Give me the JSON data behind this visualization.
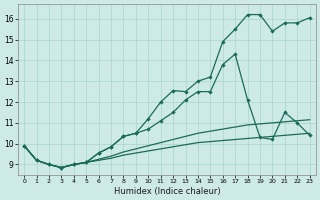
{
  "xlabel": "Humidex (Indice chaleur)",
  "x_ticks": [
    0,
    1,
    2,
    3,
    4,
    5,
    6,
    7,
    8,
    9,
    10,
    11,
    12,
    13,
    14,
    15,
    16,
    17,
    18,
    19,
    20,
    21,
    22,
    23
  ],
  "xlim": [
    -0.5,
    23.5
  ],
  "ylim": [
    8.5,
    16.7
  ],
  "y_ticks": [
    9,
    10,
    11,
    12,
    13,
    14,
    15,
    16
  ],
  "bg_color": "#ceeae6",
  "grid_color": "#a8d4cf",
  "line_color": "#1a6b5a",
  "line1_x": [
    0,
    1,
    2,
    3,
    4,
    5,
    6,
    7,
    8,
    9,
    10,
    11,
    12,
    13,
    14,
    15,
    16,
    17,
    18,
    19,
    20,
    21,
    22,
    23
  ],
  "line1_y": [
    9.9,
    9.2,
    9.0,
    8.85,
    9.0,
    9.1,
    9.2,
    9.3,
    9.45,
    9.55,
    9.65,
    9.75,
    9.85,
    9.95,
    10.05,
    10.1,
    10.15,
    10.2,
    10.25,
    10.3,
    10.35,
    10.4,
    10.45,
    10.5
  ],
  "line2_x": [
    0,
    1,
    2,
    3,
    4,
    5,
    6,
    7,
    8,
    9,
    10,
    11,
    12,
    13,
    14,
    15,
    16,
    17,
    18,
    19,
    20,
    21,
    22,
    23
  ],
  "line2_y": [
    9.9,
    9.2,
    9.0,
    8.85,
    9.0,
    9.1,
    9.25,
    9.4,
    9.6,
    9.75,
    9.9,
    10.05,
    10.2,
    10.35,
    10.5,
    10.6,
    10.7,
    10.8,
    10.9,
    10.95,
    11.0,
    11.05,
    11.1,
    11.15
  ],
  "line3_x": [
    0,
    1,
    2,
    3,
    4,
    5,
    6,
    7,
    8,
    9,
    10,
    11,
    12,
    13,
    14,
    15,
    16,
    17,
    18,
    19,
    20,
    21,
    22,
    23
  ],
  "line3_y": [
    9.9,
    9.2,
    9.0,
    8.85,
    9.0,
    9.1,
    9.55,
    9.85,
    10.35,
    10.5,
    11.2,
    12.0,
    12.55,
    12.5,
    13.0,
    13.2,
    14.9,
    15.5,
    16.2,
    16.2,
    15.4,
    15.8,
    15.8,
    16.05
  ],
  "line4_x": [
    0,
    1,
    2,
    3,
    4,
    5,
    6,
    7,
    8,
    9,
    10,
    11,
    12,
    13,
    14,
    15,
    16,
    17,
    18,
    19,
    20,
    21,
    22,
    23
  ],
  "line4_y": [
    9.9,
    9.2,
    9.0,
    8.85,
    9.0,
    9.1,
    9.55,
    9.85,
    10.35,
    10.5,
    10.7,
    11.1,
    11.5,
    12.1,
    12.5,
    12.5,
    13.8,
    14.3,
    12.1,
    10.3,
    10.2,
    11.5,
    11.0,
    10.4
  ]
}
